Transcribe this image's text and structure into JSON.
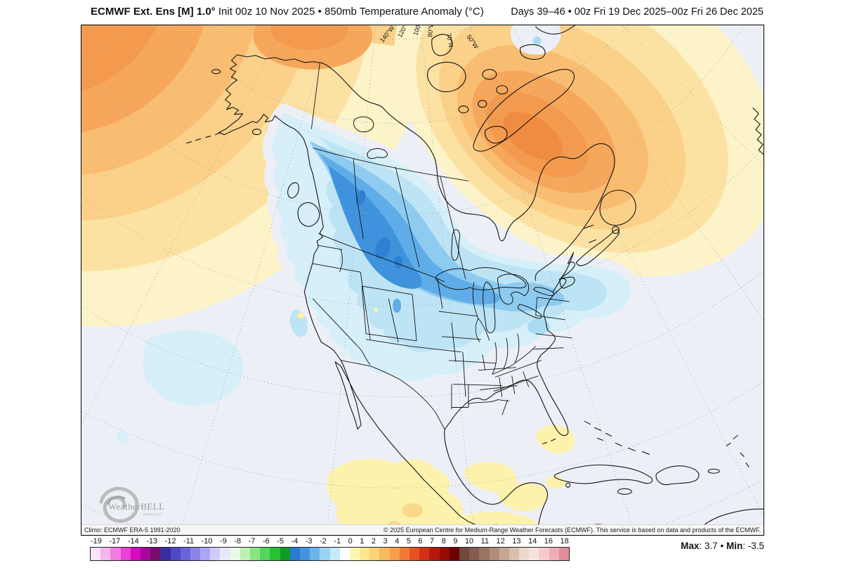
{
  "header": {
    "title_left_bold": "ECMWF Ext. Ens [M] 1.0°",
    "title_left_rest": " Init 00z 10 Nov 2025 • 850mb Temperature Anomaly (°C)",
    "title_right": "Days 39–46 • 00z Fri 19 Dec 2025–00z Fri 26 Dec 2025"
  },
  "map": {
    "graticule_labels": [
      {
        "text": "140°W"
      },
      {
        "text": "120°W"
      },
      {
        "text": "100°W"
      },
      {
        "text": "80°W"
      },
      {
        "text": "70°N"
      },
      {
        "text": "50°W"
      }
    ],
    "logo": {
      "name": "WeatherBELL",
      "suffix": "Analytics LLC"
    },
    "attribution_left": "Climo: ECMWF ERA-5 1991-2020",
    "attribution_right": "© 2025 European Centre for Medium-Range Weather Forecasts (ECMWF). This service is based on data and products of the ECMWF."
  },
  "colorbar": {
    "tick_labels": [
      "-19",
      "-17",
      "-14",
      "-13",
      "-12",
      "-11",
      "-10",
      "-9",
      "-8",
      "-7",
      "-6",
      "-5",
      "-4",
      "-3",
      "-2",
      "-1",
      "0",
      "1",
      "2",
      "3",
      "4",
      "5",
      "6",
      "7",
      "8",
      "9",
      "10",
      "11",
      "12",
      "13",
      "14",
      "16",
      "18"
    ],
    "colors": [
      "#fbe4f9",
      "#f6b5ef",
      "#f07ce4",
      "#e940d6",
      "#d50bbd",
      "#a30996",
      "#750d6c",
      "#3b2f9e",
      "#4f48c4",
      "#6a63d8",
      "#8a84e8",
      "#aba6f2",
      "#cfcbf9",
      "#e9e7fd",
      "#e8fae6",
      "#bff0b4",
      "#8ce384",
      "#55d55b",
      "#27c136",
      "#0f9c26",
      "#2b7ad2",
      "#4293de",
      "#6cb3ea",
      "#9bd2f3",
      "#c7e9f8",
      "#ffffff",
      "#fdf6b2",
      "#fce88f",
      "#fbd475",
      "#f9b95f",
      "#f79d4c",
      "#f47936",
      "#e65323",
      "#d03115",
      "#b31a0b",
      "#920c04",
      "#6b0401",
      "#714a3e",
      "#855c4d",
      "#9a7462",
      "#b08d79",
      "#c5a693",
      "#d9bfae",
      "#ecd8cb",
      "#f7e3de",
      "#f5cccd",
      "#eeadb6",
      "#e18c9c"
    ]
  },
  "stats": {
    "max_label": "Max",
    "max_value": "3.7",
    "separator": "•",
    "min_label": "Min",
    "min_value": "-3.5"
  }
}
